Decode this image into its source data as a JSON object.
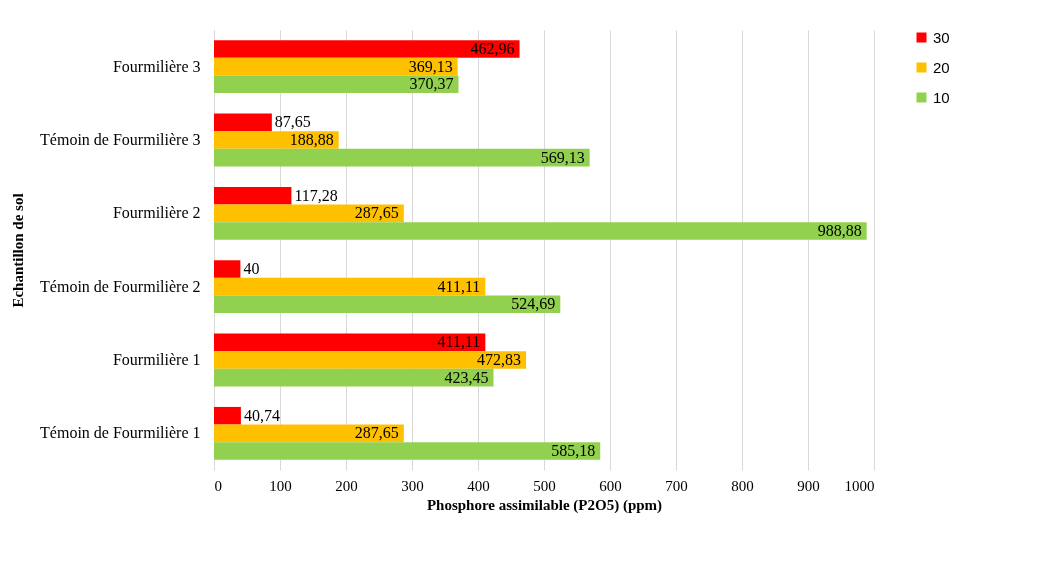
{
  "chart_data": {
    "type": "bar",
    "orientation": "horizontal",
    "xlabel": "Phosphore assimilable  (P2O5) (ppm)",
    "ylabel": "Echantillon de sol",
    "categories": [
      "Fourmilière 3",
      "Témoin de Fourmilière 3",
      "Fourmilière 2",
      "Témoin de Fourmilière 2",
      "Fourmilière 1",
      "Témoin de Fourmilière 1"
    ],
    "series": [
      {
        "name": "30",
        "color": "#ff0000",
        "values": [
          462.96,
          87.65,
          117.28,
          40,
          411.11,
          40.74
        ],
        "value_labels": [
          "462,96",
          "87,65",
          "117,28",
          "40",
          "411,11",
          "40,74"
        ]
      },
      {
        "name": "20",
        "color": "#ffc000",
        "values": [
          369.13,
          188.88,
          287.65,
          411.11,
          472.83,
          287.65
        ],
        "value_labels": [
          "369,13",
          "188,88",
          "287,65",
          "411,11",
          "472,83",
          "287,65"
        ]
      },
      {
        "name": "10",
        "color": "#92d050",
        "values": [
          370.37,
          569.13,
          988.88,
          524.69,
          423.45,
          585.18
        ],
        "value_labels": [
          "370,37",
          "569,13",
          "988,88",
          "524,69",
          "423,45",
          "585,18"
        ]
      }
    ],
    "xlim": [
      0,
      1000
    ],
    "xticks": [
      0,
      100,
      200,
      300,
      400,
      500,
      600,
      700,
      800,
      900,
      1000
    ],
    "grid": "x",
    "legend": "right"
  }
}
